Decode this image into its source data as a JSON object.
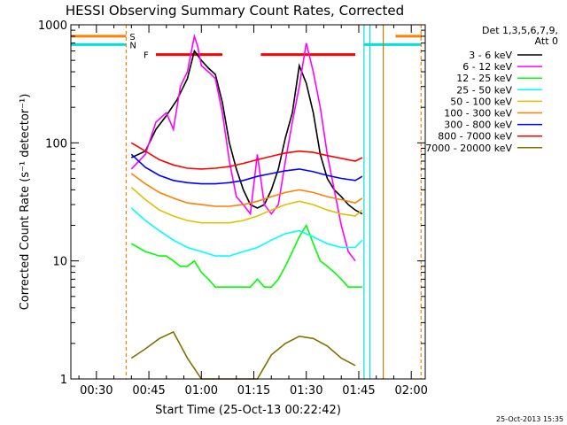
{
  "chart_data": {
    "type": "line",
    "title": "HESSI Observing Summary Count Rates, Corrected",
    "xlabel": "Start Time (25-Oct-13 00:22:42)",
    "ylabel": "Corrected Count Rate (s⁻¹ detector⁻¹)",
    "y_scale": "log",
    "ylim": [
      1,
      1000
    ],
    "xlim_minutes_after_midnight": [
      22.7,
      124
    ],
    "x_ticks": [
      {
        "t": 30,
        "label": "00:30"
      },
      {
        "t": 45,
        "label": "00:45"
      },
      {
        "t": 60,
        "label": "01:00"
      },
      {
        "t": 75,
        "label": "01:15"
      },
      {
        "t": 90,
        "label": "01:30"
      },
      {
        "t": 105,
        "label": "01:45"
      },
      {
        "t": 120,
        "label": "02:00"
      }
    ],
    "y_ticks": [
      {
        "v": 1,
        "label": "1"
      },
      {
        "v": 10,
        "label": "10"
      },
      {
        "v": 100,
        "label": "100"
      },
      {
        "v": 1000,
        "label": "1000"
      }
    ],
    "legend_header": [
      "Det 1,3,5,6,7,9,",
      "Att 0"
    ],
    "legend_position": "right",
    "flags": [
      {
        "label": "S",
        "color": "#ff7f00",
        "level": 800,
        "segments": [
          [
            22.7,
            38.5
          ],
          [
            115.5,
            123
          ]
        ]
      },
      {
        "label": "N",
        "color": "#00e0e0",
        "level": 680,
        "segments": [
          [
            22.7,
            38.5
          ],
          [
            106.5,
            123
          ]
        ]
      },
      {
        "label": "F",
        "color": "#ff0000",
        "level": 560,
        "segments": [
          [
            47,
            66
          ],
          [
            77,
            104
          ]
        ]
      }
    ],
    "markers": [
      {
        "t": 38.5,
        "color": "#ff7f00",
        "dashed": true
      },
      {
        "t": 106.5,
        "color": "#00e0e0",
        "dashed": false
      },
      {
        "t": 108.2,
        "color": "#00e0e0",
        "dashed": false
      },
      {
        "t": 112,
        "color": "#c08000",
        "dashed": false
      },
      {
        "t": 122.8,
        "color": "#ff7f00",
        "dashed": true
      }
    ],
    "series": [
      {
        "name": "3 - 6 keV",
        "color": "#000000",
        "t": [
          40,
          44,
          47,
          50,
          53,
          56,
          58,
          60,
          62,
          64,
          66,
          68,
          70,
          72,
          74,
          76,
          78,
          80,
          82,
          84,
          86,
          88,
          90,
          92,
          94,
          96,
          98,
          100,
          102,
          104,
          106
        ],
        "v": [
          75,
          85,
          130,
          170,
          230,
          350,
          600,
          500,
          430,
          380,
          220,
          100,
          60,
          40,
          30,
          28,
          30,
          40,
          60,
          110,
          180,
          450,
          320,
          180,
          80,
          50,
          40,
          35,
          30,
          27,
          25
        ]
      },
      {
        "name": "6 - 12 keV",
        "color": "#ff00ff",
        "t": [
          40,
          44,
          47,
          50,
          52,
          54,
          56,
          58,
          59,
          60,
          62,
          64,
          66,
          68,
          70,
          72,
          74,
          76,
          78,
          80,
          82,
          84,
          86,
          88,
          90,
          92,
          94,
          96,
          98,
          100,
          102,
          104
        ],
        "v": [
          60,
          80,
          150,
          180,
          130,
          300,
          400,
          800,
          650,
          450,
          400,
          350,
          180,
          70,
          35,
          30,
          25,
          80,
          30,
          25,
          30,
          70,
          150,
          300,
          700,
          400,
          200,
          80,
          40,
          20,
          12,
          10
        ]
      },
      {
        "name": "12 - 25 keV",
        "color": "#00ff00",
        "t": [
          40,
          44,
          48,
          50,
          52,
          54,
          56,
          58,
          60,
          62,
          64,
          66,
          68,
          70,
          72,
          74,
          76,
          78,
          80,
          82,
          84,
          86,
          88,
          90,
          92,
          94,
          96,
          98,
          100,
          102,
          104,
          106
        ],
        "v": [
          14,
          12,
          11,
          11,
          10,
          9,
          9,
          10,
          8,
          7,
          6,
          6,
          6,
          6,
          6,
          6,
          7,
          6,
          6,
          7,
          9,
          12,
          16,
          20,
          14,
          10,
          9,
          8,
          7,
          6,
          6,
          6
        ]
      },
      {
        "name": "25 - 50 keV",
        "color": "#00ffff",
        "t": [
          40,
          44,
          48,
          52,
          56,
          60,
          64,
          68,
          72,
          76,
          80,
          84,
          88,
          92,
          96,
          100,
          104,
          106
        ],
        "v": [
          28,
          22,
          18,
          15,
          13,
          12,
          11,
          11,
          12,
          13,
          15,
          17,
          18,
          16,
          14,
          13,
          13,
          15
        ]
      },
      {
        "name": "50 - 100 keV",
        "color": "#e0c000",
        "t": [
          40,
          44,
          48,
          52,
          56,
          60,
          64,
          68,
          72,
          76,
          80,
          84,
          88,
          92,
          96,
          100,
          104,
          106
        ],
        "v": [
          42,
          33,
          27,
          24,
          22,
          21,
          21,
          21,
          22,
          24,
          27,
          30,
          32,
          30,
          27,
          25,
          24,
          27
        ]
      },
      {
        "name": "100 - 300 keV",
        "color": "#ff7f00",
        "t": [
          40,
          44,
          48,
          52,
          56,
          60,
          64,
          68,
          72,
          76,
          80,
          84,
          88,
          92,
          96,
          100,
          104,
          106
        ],
        "v": [
          55,
          45,
          38,
          34,
          31,
          30,
          29,
          29,
          30,
          32,
          35,
          38,
          40,
          38,
          35,
          33,
          31,
          34
        ]
      },
      {
        "name": "300 - 800 keV",
        "color": "#0000ff",
        "t": [
          40,
          44,
          48,
          52,
          56,
          60,
          64,
          68,
          72,
          76,
          80,
          84,
          88,
          92,
          96,
          100,
          104,
          106
        ],
        "v": [
          80,
          62,
          53,
          48,
          46,
          45,
          45,
          46,
          48,
          52,
          55,
          58,
          60,
          57,
          53,
          50,
          48,
          52
        ]
      },
      {
        "name": "800 - 7000 keV",
        "color": "#ff0000",
        "t": [
          40,
          44,
          48,
          52,
          56,
          60,
          64,
          68,
          72,
          76,
          80,
          84,
          88,
          92,
          96,
          100,
          104,
          106
        ],
        "v": [
          100,
          85,
          72,
          65,
          61,
          60,
          61,
          63,
          67,
          72,
          77,
          82,
          85,
          83,
          78,
          74,
          70,
          75
        ]
      },
      {
        "name": "7000 - 20000 keV",
        "color": "#807000",
        "t": [
          40,
          44,
          48,
          52,
          56,
          60,
          64,
          68,
          72,
          76,
          80,
          84,
          88,
          92,
          96,
          100,
          104
        ],
        "v": [
          1.5,
          1.8,
          2.2,
          2.5,
          1.5,
          1,
          1,
          1,
          1,
          1,
          1.6,
          2,
          2.3,
          2.2,
          1.9,
          1.5,
          1.3
        ]
      }
    ],
    "footer_date": "25-Oct-2013 15:35"
  }
}
